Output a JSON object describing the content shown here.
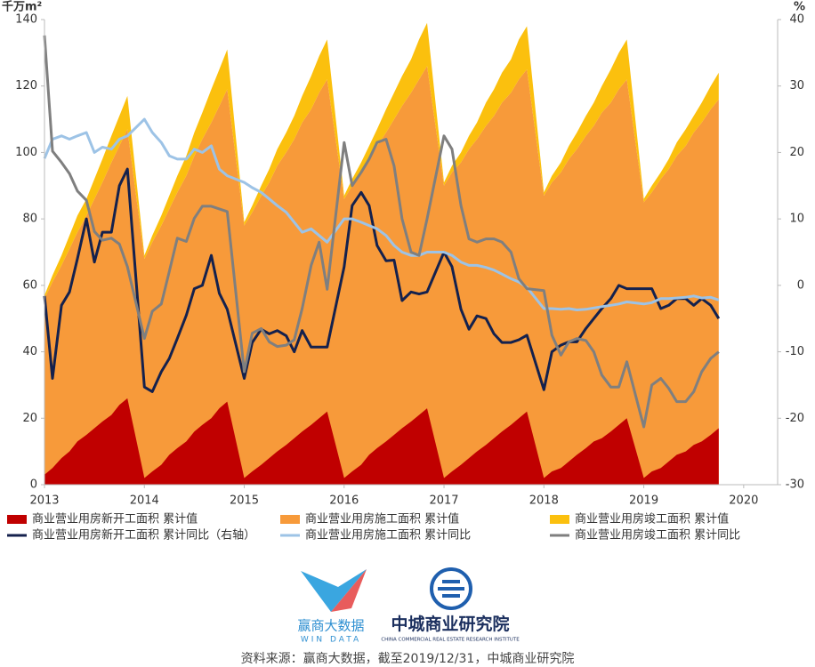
{
  "chart_data": {
    "type": "combo",
    "y_unit": "千万m²",
    "y2_unit": "%",
    "x": [
      2013,
      2013.08,
      2013.17,
      2013.25,
      2013.33,
      2013.42,
      2013.5,
      2013.58,
      2013.67,
      2013.75,
      2013.83,
      2014,
      2014.08,
      2014.17,
      2014.25,
      2014.33,
      2014.42,
      2014.5,
      2014.58,
      2014.67,
      2014.75,
      2014.83,
      2015,
      2015.08,
      2015.17,
      2015.25,
      2015.33,
      2015.42,
      2015.5,
      2015.58,
      2015.67,
      2015.75,
      2015.83,
      2016,
      2016.08,
      2016.17,
      2016.25,
      2016.33,
      2016.42,
      2016.5,
      2016.58,
      2016.67,
      2016.75,
      2016.83,
      2017,
      2017.08,
      2017.17,
      2017.25,
      2017.33,
      2017.42,
      2017.5,
      2017.58,
      2017.67,
      2017.75,
      2017.83,
      2018,
      2018.08,
      2018.17,
      2018.25,
      2018.33,
      2018.42,
      2018.5,
      2018.58,
      2018.67,
      2018.75,
      2018.83,
      2019,
      2019.08,
      2019.17,
      2019.25,
      2019.33,
      2019.42,
      2019.5,
      2019.58,
      2019.67,
      2019.75
    ],
    "xlim": [
      2013,
      2020.34
    ],
    "xticks": [
      2013,
      2014,
      2015,
      2016,
      2017,
      2018,
      2019,
      2020
    ],
    "ylim": [
      0,
      140
    ],
    "yticks": [
      0,
      20,
      40,
      60,
      80,
      100,
      120,
      140
    ],
    "y2lim": [
      -30,
      40
    ],
    "y2ticks": [
      -30,
      -20,
      -10,
      0,
      10,
      20,
      30,
      40
    ],
    "series": [
      {
        "name": "商业营业用房新开工面积 累计值",
        "type": "area",
        "color": "#c00000",
        "values": [
          3,
          5,
          8,
          10,
          13,
          15,
          17,
          19,
          21,
          24,
          26,
          2,
          4,
          6,
          9,
          11,
          13,
          16,
          18,
          20,
          23,
          25,
          2,
          4,
          6,
          8,
          10,
          12,
          14,
          16,
          18,
          20,
          22,
          2,
          4,
          6,
          9,
          11,
          13,
          15,
          17,
          19,
          21,
          23,
          2,
          4,
          6,
          8,
          10,
          12,
          14,
          16,
          18,
          20,
          22,
          2,
          4,
          5,
          7,
          9,
          11,
          13,
          14,
          16,
          18,
          20,
          2,
          4,
          5,
          7,
          9,
          10,
          12,
          13,
          15,
          17
        ]
      },
      {
        "name": "商业营业用房施工面积 累计值",
        "type": "area",
        "color": "#f79a3a",
        "values": [
          56,
          61,
          66,
          71,
          76,
          81,
          86,
          91,
          97,
          102,
          107,
          68,
          73,
          78,
          83,
          88,
          93,
          99,
          104,
          109,
          114,
          119,
          78,
          82,
          87,
          91,
          96,
          100,
          104,
          109,
          113,
          118,
          122,
          86,
          90,
          94,
          98,
          102,
          106,
          110,
          114,
          118,
          122,
          126,
          90,
          94,
          97,
          101,
          104,
          108,
          111,
          115,
          118,
          122,
          125,
          87,
          91,
          94,
          98,
          101,
          105,
          108,
          112,
          115,
          119,
          122,
          85,
          88,
          92,
          95,
          99,
          102,
          106,
          109,
          113,
          116
        ]
      },
      {
        "name": "商业营业用房竣工面积 累计值",
        "type": "area",
        "color": "#fbc00e",
        "stacked_on": 1,
        "values": [
          1,
          2,
          3,
          4,
          5,
          5,
          6,
          7,
          8,
          9,
          10,
          1,
          2,
          3,
          4,
          5,
          6,
          7,
          8,
          10,
          11,
          12,
          1,
          2,
          3,
          4,
          5,
          6,
          7,
          8,
          10,
          11,
          12,
          1,
          2,
          3,
          4,
          5,
          7,
          8,
          9,
          10,
          12,
          13,
          1,
          2,
          3,
          4,
          5,
          7,
          8,
          9,
          10,
          12,
          13,
          1,
          2,
          3,
          4,
          5,
          6,
          7,
          8,
          10,
          11,
          12,
          1,
          2,
          2,
          3,
          4,
          5,
          5,
          6,
          7,
          8
        ]
      },
      {
        "name": "商业营业用房新开工面积 累计同比（右轴）",
        "type": "line",
        "axis": "y2",
        "color": "#14214d",
        "values": [
          -1.6,
          -14,
          -3,
          -1,
          4,
          10,
          3.5,
          8,
          8,
          15,
          17.5,
          -15.3,
          -16,
          -13,
          -11,
          -8,
          -4.5,
          -0.5,
          0,
          4.5,
          -1.2,
          -3.6,
          -14,
          -8.6,
          -6.6,
          -7.3,
          -6.8,
          -7.6,
          -10,
          -6.8,
          -9.3,
          -9.3,
          -9.3,
          2.8,
          12,
          14,
          12,
          6,
          3.7,
          3.8,
          -2.3,
          -1,
          -1.3,
          -1,
          5,
          2.8,
          -3.6,
          -6.6,
          -4.6,
          -5,
          -7.3,
          -8.6,
          -8.6,
          -8.2,
          -7.5,
          -15.7,
          -10,
          -9,
          -8.5,
          -8.5,
          -6.5,
          -5,
          -3.5,
          -2,
          0,
          -0.5,
          -0.5,
          -0.5,
          -3.5,
          -3,
          -2,
          -2,
          -3,
          -2,
          -3,
          -5
        ]
      },
      {
        "name": "商业营业用房施工面积 累计同比",
        "type": "line",
        "axis": "y2",
        "color": "#9dc3e6",
        "values": [
          19.1,
          22,
          22.5,
          22,
          22.5,
          23,
          20,
          20.8,
          20.5,
          22,
          22.5,
          25,
          23,
          21.5,
          19.5,
          19,
          19,
          20.5,
          20,
          21,
          17.5,
          16.5,
          15.5,
          14.7,
          14,
          13,
          12,
          11,
          9.5,
          8,
          8.5,
          7.5,
          6.5,
          10,
          10,
          9.5,
          9,
          8.5,
          7.5,
          6,
          5,
          4.5,
          4.5,
          5,
          5,
          4.5,
          3.5,
          3,
          3,
          2.7,
          2.3,
          1.7,
          1,
          0.5,
          -0.3,
          -3.5,
          -3.5,
          -3.6,
          -3.5,
          -3.7,
          -3.6,
          -3.4,
          -3.2,
          -3,
          -2.8,
          -2.5,
          -2.8,
          -2.6,
          -2,
          -2,
          -1.9,
          -1.8,
          -1.6,
          -1.9,
          -1.8,
          -2.2
        ]
      },
      {
        "name": "商业营业用房竣工面积 累计同比",
        "type": "line",
        "axis": "y2",
        "color": "#7f7f7f",
        "values": [
          37.6,
          20.2,
          18.5,
          16.8,
          14.2,
          12.8,
          8.1,
          6.8,
          7.1,
          6.2,
          2.8,
          -8,
          -3.9,
          -2.8,
          2.1,
          7.1,
          6.6,
          10.1,
          11.9,
          11.9,
          11.5,
          11.1,
          -13,
          -7.2,
          -6.5,
          -8.5,
          -9.2,
          -9,
          -8.2,
          -3.5,
          3,
          6.5,
          -0.6,
          21.5,
          15,
          17,
          19,
          21.5,
          22,
          18,
          10,
          5,
          4.5,
          10,
          22.5,
          20.5,
          12,
          7,
          6.5,
          7,
          7,
          6.5,
          5,
          1,
          -0.5,
          -0.8,
          -7.5,
          -10.5,
          -8.5,
          -8,
          -8.3,
          -10,
          -13.5,
          -15.3,
          -15.3,
          -11.5,
          -21.3,
          -15,
          -14,
          -15.5,
          -17.5,
          -17.5,
          -16,
          -13,
          -11,
          -10
        ]
      }
    ],
    "source": "资料来源：赢商大数据，截至2019/12/31，中城商业研究院"
  },
  "logos": [
    {
      "name": "赢商大数据",
      "subtitle": "WIN DATA"
    },
    {
      "name": "中城商业研究院",
      "subtitle": "CHINA COMMERCIAL REAL ESTATE RESEARCH INSTITUTE"
    }
  ]
}
